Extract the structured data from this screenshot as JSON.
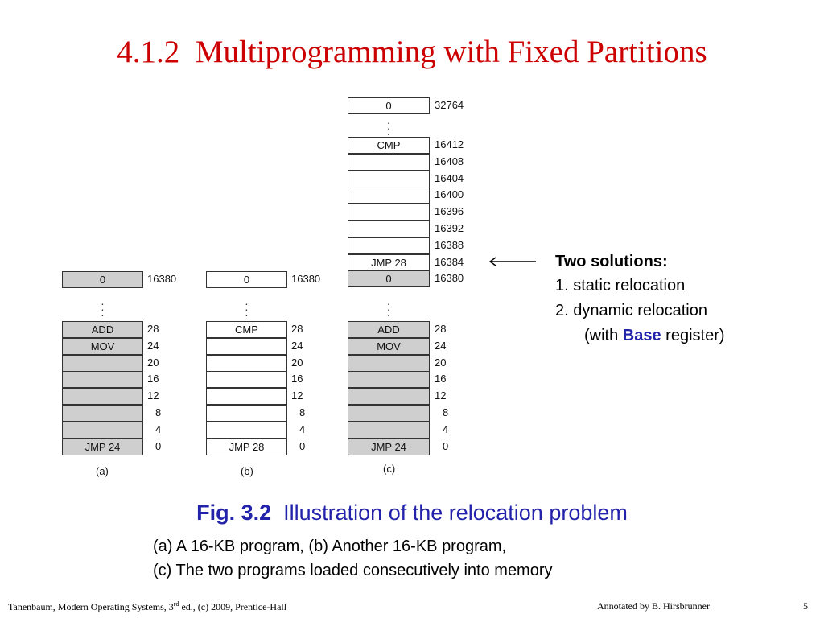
{
  "title": "4.1.2  Multiprogramming with Fixed Partitions",
  "diagram": {
    "a": {
      "top": {
        "label": "0",
        "addr": "16380"
      },
      "cells": [
        {
          "label": "ADD",
          "addr": "28"
        },
        {
          "label": "MOV",
          "addr": "24"
        },
        {
          "label": "",
          "addr": "20"
        },
        {
          "label": "",
          "addr": "16"
        },
        {
          "label": "",
          "addr": "12"
        },
        {
          "label": "",
          "addr": "8"
        },
        {
          "label": "",
          "addr": "4"
        },
        {
          "label": "JMP  24",
          "addr": "0"
        }
      ],
      "caption": "(a)"
    },
    "b": {
      "top": {
        "label": "0",
        "addr": "16380"
      },
      "cells": [
        {
          "label": "CMP",
          "addr": "28"
        },
        {
          "label": "",
          "addr": "24"
        },
        {
          "label": "",
          "addr": "20"
        },
        {
          "label": "",
          "addr": "16"
        },
        {
          "label": "",
          "addr": "12"
        },
        {
          "label": "",
          "addr": "8"
        },
        {
          "label": "",
          "addr": "4"
        },
        {
          "label": "JMP 28",
          "addr": "0"
        }
      ],
      "caption": "(b)"
    },
    "c": {
      "top": {
        "label": "0",
        "addr": "32764"
      },
      "upper": [
        {
          "label": "CMP",
          "addr": "16412"
        },
        {
          "label": "",
          "addr": "16408"
        },
        {
          "label": "",
          "addr": "16404"
        },
        {
          "label": "",
          "addr": "16400"
        },
        {
          "label": "",
          "addr": "16396"
        },
        {
          "label": "",
          "addr": "16392"
        },
        {
          "label": "",
          "addr": "16388"
        },
        {
          "label": "JMP 28",
          "addr": "16384"
        },
        {
          "label": "0",
          "addr": "16380"
        }
      ],
      "lower": [
        {
          "label": "ADD",
          "addr": "28"
        },
        {
          "label": "MOV",
          "addr": "24"
        },
        {
          "label": "",
          "addr": "20"
        },
        {
          "label": "",
          "addr": "16"
        },
        {
          "label": "",
          "addr": "12"
        },
        {
          "label": "",
          "addr": "8"
        },
        {
          "label": "",
          "addr": "4"
        },
        {
          "label": "JMP  24",
          "addr": "0"
        }
      ],
      "caption": "(c)"
    }
  },
  "solutions": {
    "heading": "Two solutions:",
    "item1": "1.   static relocation",
    "item2": "2.   dynamic relocation",
    "note_pre": "(with ",
    "note_base": "Base",
    "note_post": " register)"
  },
  "figure": {
    "label": "Fig. 3.2",
    "text": "  Illustration of the relocation problem",
    "line1": "(a) A 16-KB program, (b) Another 16-KB program,",
    "line2": "(c) The two programs loaded consecutively into memory"
  },
  "footer": {
    "left_pre": "Tanenbaum, Modern Operating Systems, 3",
    "left_sup": "rd",
    "left_post": " ed., (c) 2009, Prentice-Hall",
    "middle": "Annotated by B. Hirsbrunner",
    "page": "5"
  },
  "colors": {
    "title": "#cc0000",
    "figure": "#2222aa",
    "cell_gray": "#cfcfcf"
  }
}
